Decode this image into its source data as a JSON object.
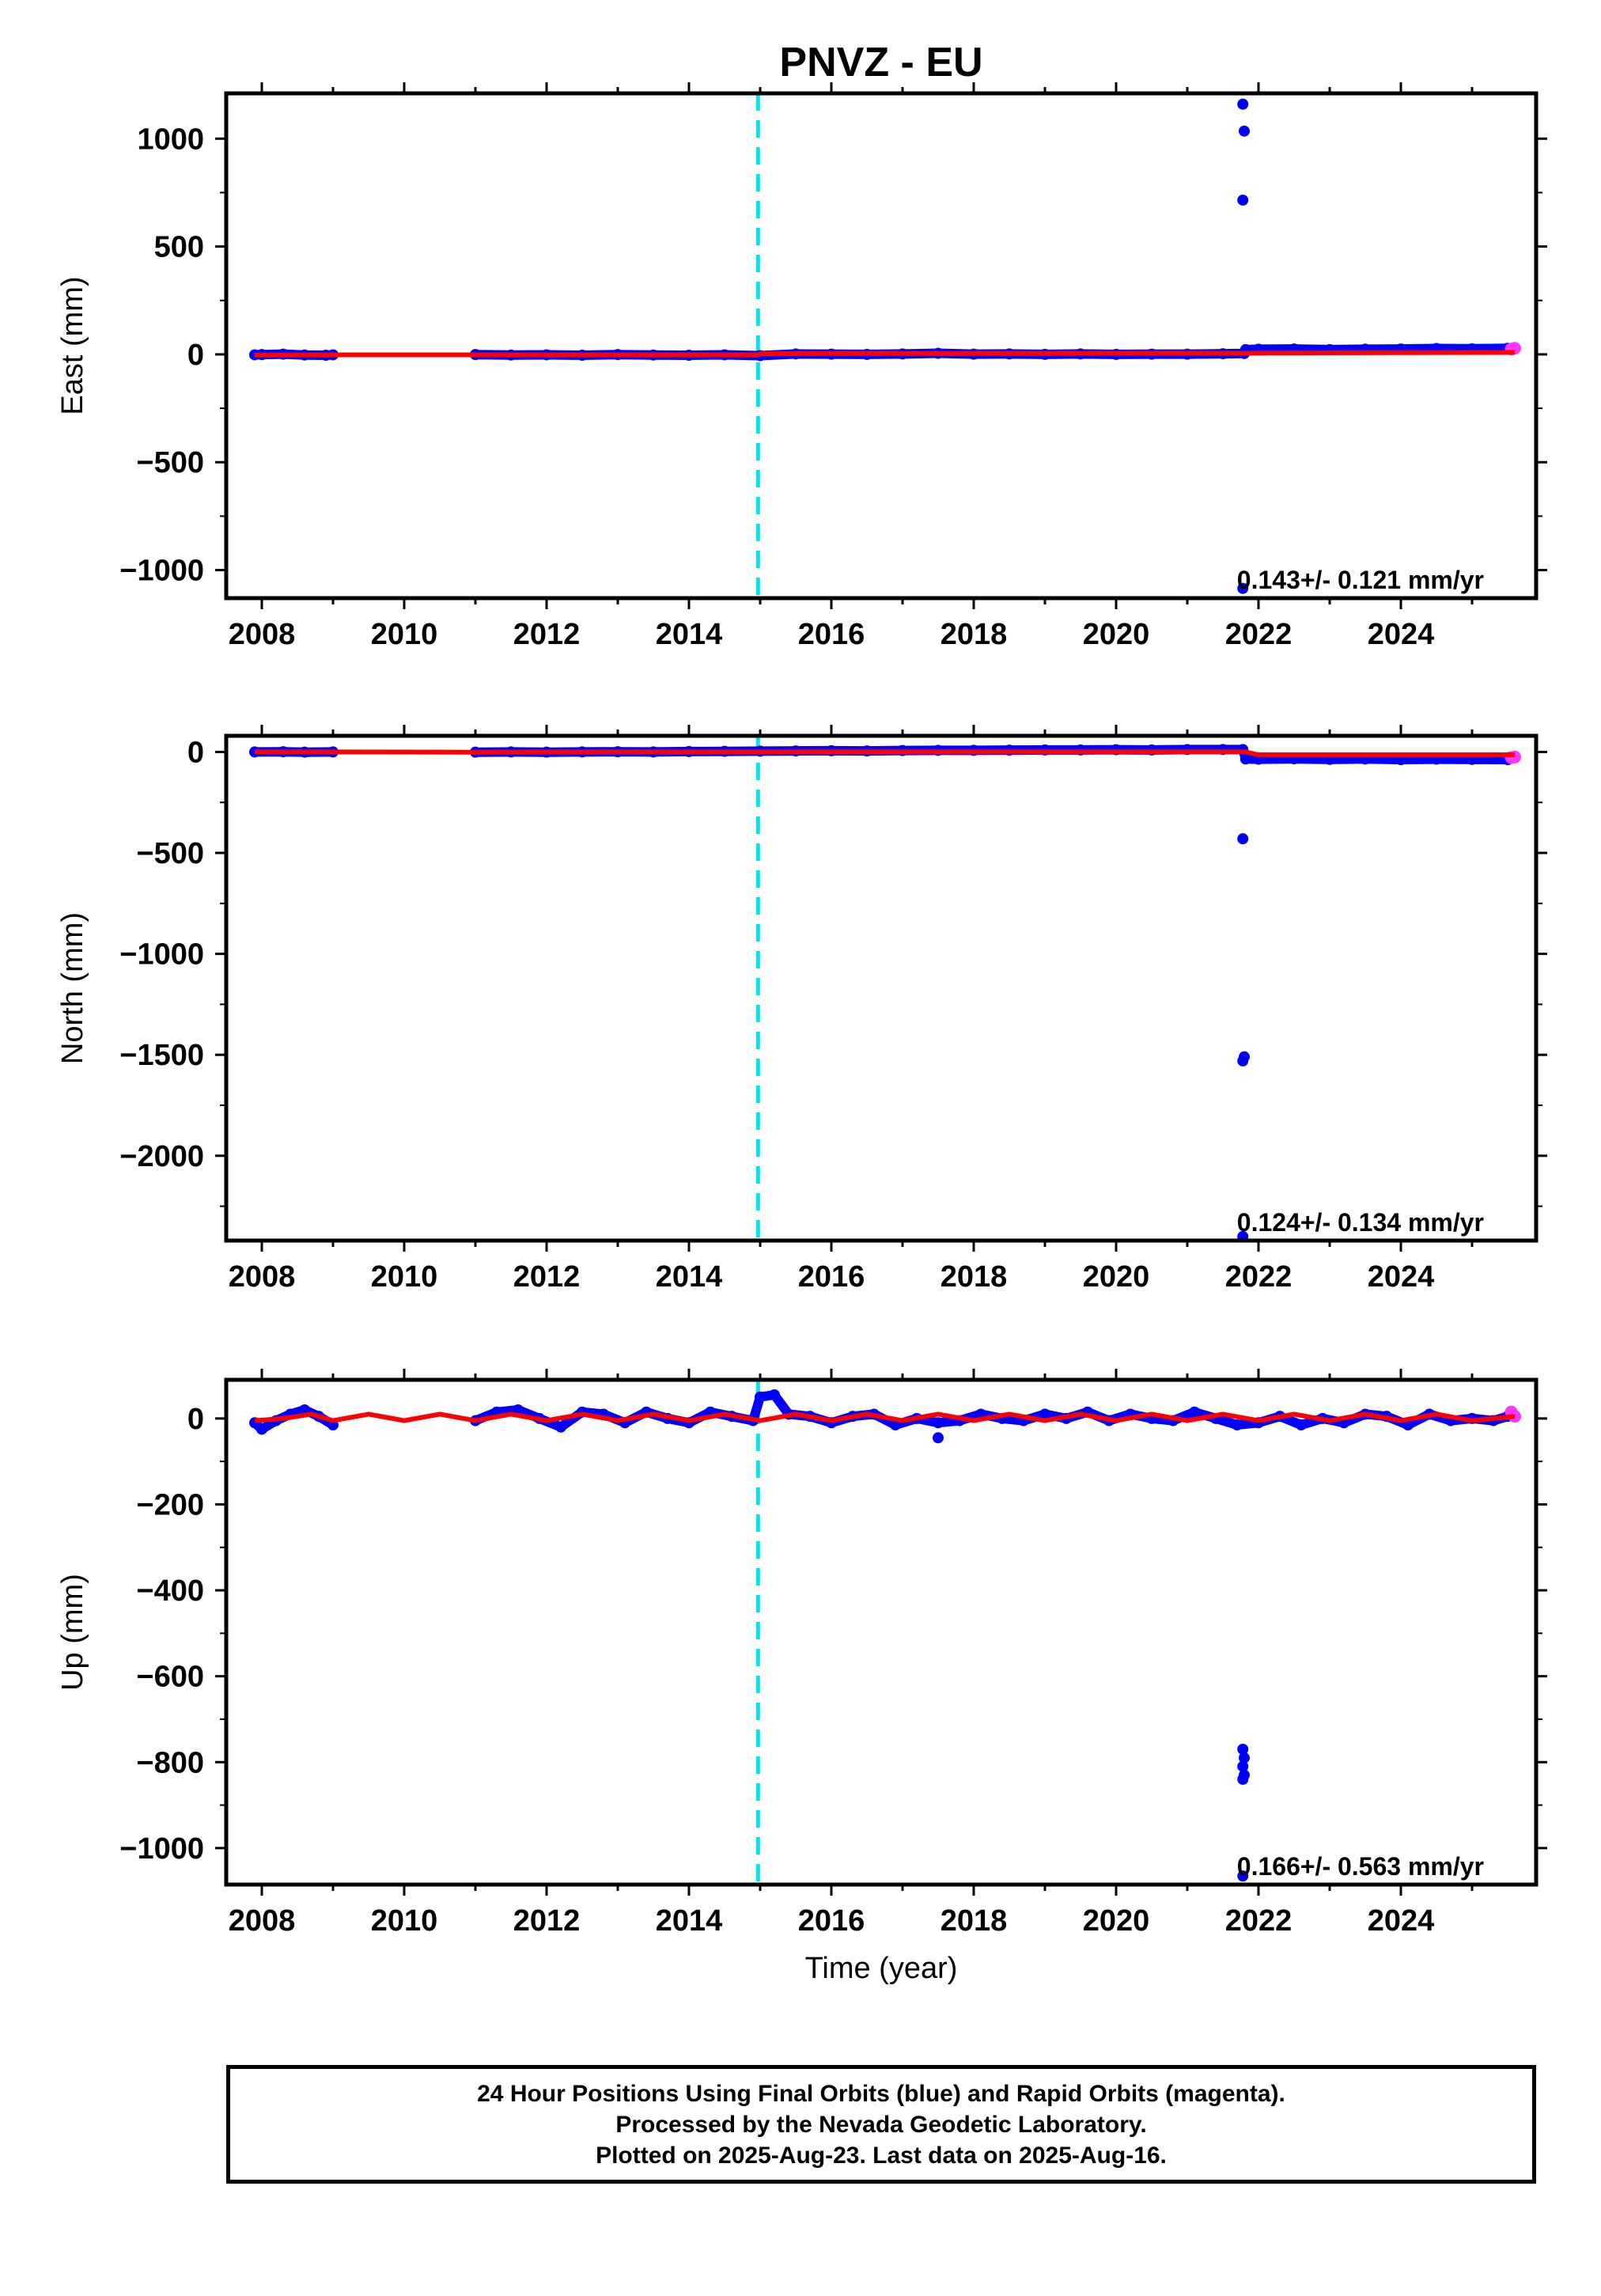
{
  "chart_data": {
    "title": "PNVZ - EU",
    "type": "scatter",
    "xlabel": "Time (year)",
    "xlim": [
      2007.5,
      2025.9
    ],
    "xticks": [
      2008,
      2010,
      2012,
      2014,
      2016,
      2018,
      2020,
      2022,
      2024
    ],
    "xtick_labels": [
      "2008",
      "2010",
      "2012",
      "2014",
      "2016",
      "2018",
      "2020",
      "2022",
      "2024"
    ],
    "event_line": {
      "x": 2014.97,
      "color": "#00e5ee",
      "style": "dashed"
    },
    "colors": {
      "final": "#0000ff",
      "rapid": "#ff33ff",
      "model": "#ff0000",
      "event": "#00e5ee"
    },
    "panels": [
      {
        "id": "east",
        "ylabel": "East (mm)",
        "ylim": [
          -1130,
          1210
        ],
        "yticks": [
          1000,
          500,
          0,
          -500,
          -1000
        ],
        "ytick_labels": [
          "1000",
          "500",
          "0",
          "−500",
          "−1000"
        ],
        "rate_text": "0.143+/- 0.121 mm/yr",
        "series": [
          {
            "name": "final",
            "x": [
              2007.9,
              2008.0,
              2008.3,
              2008.6,
              2008.9,
              2009.0,
              2011.0,
              2011.5,
              2012.0,
              2012.5,
              2013.0,
              2013.5,
              2014.0,
              2014.5,
              2015.0,
              2015.5,
              2016.0,
              2016.5,
              2017.0,
              2017.5,
              2018.0,
              2018.5,
              2019.0,
              2019.5,
              2020.0,
              2020.5,
              2021.0,
              2021.5,
              2021.8,
              2021.82,
              2022.0,
              2022.5,
              2023.0,
              2023.5,
              2024.0,
              2024.5,
              2025.0,
              2025.5
            ],
            "y": [
              -2,
              -1,
              1,
              -3,
              -4,
              -2,
              -1,
              -3,
              -2,
              -4,
              -1,
              -3,
              -4,
              -2,
              -6,
              2,
              1,
              0,
              2,
              5,
              1,
              2,
              0,
              2,
              0,
              1,
              1,
              3,
              4,
              22,
              24,
              25,
              22,
              24,
              25,
              27,
              26,
              28
            ]
          },
          {
            "name": "final-outliers",
            "x": [
              2021.78,
              2021.8,
              2021.78,
              2021.78
            ],
            "y": [
              1160,
              1035,
              715,
              -1085
            ]
          },
          {
            "name": "rapid",
            "x": [
              2025.55,
              2025.6
            ],
            "y": [
              25,
              28
            ]
          },
          {
            "name": "model",
            "x": [
              2007.9,
              2009.0,
              2010.0,
              2011.0,
              2012.0,
              2013.0,
              2014.0,
              2014.97,
              2015.0,
              2016.0,
              2017.0,
              2018.0,
              2019.0,
              2020.0,
              2021.0,
              2021.8,
              2022.0,
              2023.0,
              2024.0,
              2025.6
            ],
            "y": [
              -3,
              -2,
              -2,
              -2,
              -2,
              -2,
              -2,
              -2,
              3,
              4,
              4,
              4,
              4,
              5,
              5,
              5,
              6,
              7,
              8,
              9
            ]
          }
        ]
      },
      {
        "id": "north",
        "ylabel": "North (mm)",
        "ylim": [
          -2420,
          80
        ],
        "yticks": [
          0,
          -500,
          -1000,
          -1500,
          -2000
        ],
        "ytick_labels": [
          "0",
          "−500",
          "−1000",
          "−1500",
          "−2000"
        ],
        "rate_text": "0.124+/- 0.134 mm/yr",
        "series": [
          {
            "name": "final",
            "x": [
              2007.9,
              2008.3,
              2008.6,
              2009.0,
              2011.0,
              2011.5,
              2012.0,
              2012.5,
              2013.0,
              2013.5,
              2014.0,
              2014.5,
              2015.0,
              2015.5,
              2016.0,
              2016.5,
              2017.0,
              2017.5,
              2018.0,
              2018.5,
              2019.0,
              2019.5,
              2020.0,
              2020.5,
              2021.0,
              2021.5,
              2021.78,
              2021.82,
              2022.0,
              2022.5,
              2023.0,
              2023.5,
              2024.0,
              2024.5,
              2025.0,
              2025.5
            ],
            "y": [
              0,
              1,
              -1,
              0,
              -1,
              0,
              -1,
              0,
              1,
              0,
              2,
              3,
              4,
              5,
              6,
              5,
              7,
              8,
              8,
              9,
              10,
              10,
              11,
              10,
              12,
              12,
              12,
              -35,
              -36,
              -34,
              -37,
              -35,
              -38,
              -36,
              -37,
              -38
            ]
          },
          {
            "name": "final-outliers",
            "x": [
              2021.78,
              2021.8,
              2021.78,
              2021.78
            ],
            "y": [
              -430,
              -1510,
              -1530,
              -2400
            ]
          },
          {
            "name": "rapid",
            "x": [
              2025.55,
              2025.6
            ],
            "y": [
              -28,
              -25
            ]
          },
          {
            "name": "model",
            "x": [
              2007.9,
              2009.0,
              2011.0,
              2013.0,
              2014.97,
              2016.0,
              2018.0,
              2020.0,
              2021.8,
              2022.0,
              2023.0,
              2024.0,
              2025.6
            ],
            "y": [
              0,
              0,
              -1,
              0,
              0,
              1,
              1,
              1,
              1,
              -14,
              -14,
              -14,
              -14
            ]
          }
        ]
      },
      {
        "id": "up",
        "ylabel": "Up (mm)",
        "ylim": [
          -1085,
          90
        ],
        "yticks": [
          0,
          -200,
          -400,
          -600,
          -800,
          -1000
        ],
        "ytick_labels": [
          "0",
          "−200",
          "−400",
          "−600",
          "−800",
          "−1000"
        ],
        "rate_text": "0.166+/- 0.563 mm/yr",
        "series": [
          {
            "name": "final",
            "x": [
              2007.9,
              2008.0,
              2008.2,
              2008.4,
              2008.6,
              2008.8,
              2009.0,
              2011.0,
              2011.3,
              2011.6,
              2011.9,
              2012.2,
              2012.5,
              2012.8,
              2013.1,
              2013.4,
              2013.7,
              2014.0,
              2014.3,
              2014.6,
              2014.9,
              2015.0,
              2015.2,
              2015.4,
              2015.7,
              2016.0,
              2016.3,
              2016.6,
              2016.9,
              2017.2,
              2017.5,
              2017.8,
              2018.1,
              2018.4,
              2018.7,
              2019.0,
              2019.3,
              2019.6,
              2019.9,
              2020.2,
              2020.5,
              2020.8,
              2021.1,
              2021.4,
              2021.7,
              2022.0,
              2022.3,
              2022.6,
              2022.9,
              2023.2,
              2023.5,
              2023.8,
              2024.1,
              2024.4,
              2024.7,
              2025.0,
              2025.3,
              2025.5
            ],
            "y": [
              -10,
              -25,
              -5,
              10,
              20,
              5,
              -15,
              -5,
              15,
              20,
              0,
              -20,
              15,
              10,
              -10,
              15,
              0,
              -10,
              15,
              5,
              -5,
              50,
              55,
              10,
              5,
              -10,
              5,
              10,
              -15,
              0,
              -10,
              -5,
              10,
              0,
              -5,
              10,
              0,
              15,
              -5,
              10,
              0,
              -5,
              15,
              0,
              -15,
              -10,
              5,
              -15,
              0,
              -10,
              10,
              5,
              -15,
              10,
              -5,
              0,
              -5,
              5
            ]
          },
          {
            "name": "final-outliers",
            "x": [
              2017.5,
              2021.78,
              2021.8,
              2021.78,
              2021.8,
              2021.78,
              2021.78
            ],
            "y": [
              -45,
              -770,
              -790,
              -810,
              -830,
              -840,
              -1065
            ]
          },
          {
            "name": "rapid",
            "x": [
              2025.55,
              2025.6
            ],
            "y": [
              15,
              5
            ]
          },
          {
            "name": "model",
            "x": [
              2007.9,
              2008.3,
              2008.7,
              2009.0,
              2009.5,
              2010.0,
              2010.5,
              2011.0,
              2011.5,
              2012.0,
              2012.5,
              2013.0,
              2013.5,
              2014.0,
              2014.5,
              2015.0,
              2015.5,
              2016.0,
              2016.5,
              2017.0,
              2017.5,
              2018.0,
              2018.5,
              2019.0,
              2019.5,
              2020.0,
              2020.5,
              2021.0,
              2021.5,
              2022.0,
              2022.5,
              2023.0,
              2023.5,
              2024.0,
              2024.5,
              2025.0,
              2025.6
            ],
            "y": [
              -5,
              0,
              10,
              -5,
              10,
              -5,
              10,
              -5,
              10,
              -5,
              10,
              -5,
              10,
              -5,
              10,
              -5,
              10,
              -5,
              10,
              -5,
              10,
              -5,
              10,
              -5,
              10,
              -5,
              10,
              -5,
              10,
              -5,
              10,
              -5,
              10,
              -5,
              10,
              -5,
              5
            ]
          }
        ]
      }
    ]
  },
  "footer": {
    "line1": "24 Hour Positions Using Final Orbits (blue) and Rapid Orbits (magenta).",
    "line2": "Processed by the Nevada Geodetic Laboratory.",
    "line3": "Plotted on 2025-Aug-23. Last data on 2025-Aug-16."
  }
}
